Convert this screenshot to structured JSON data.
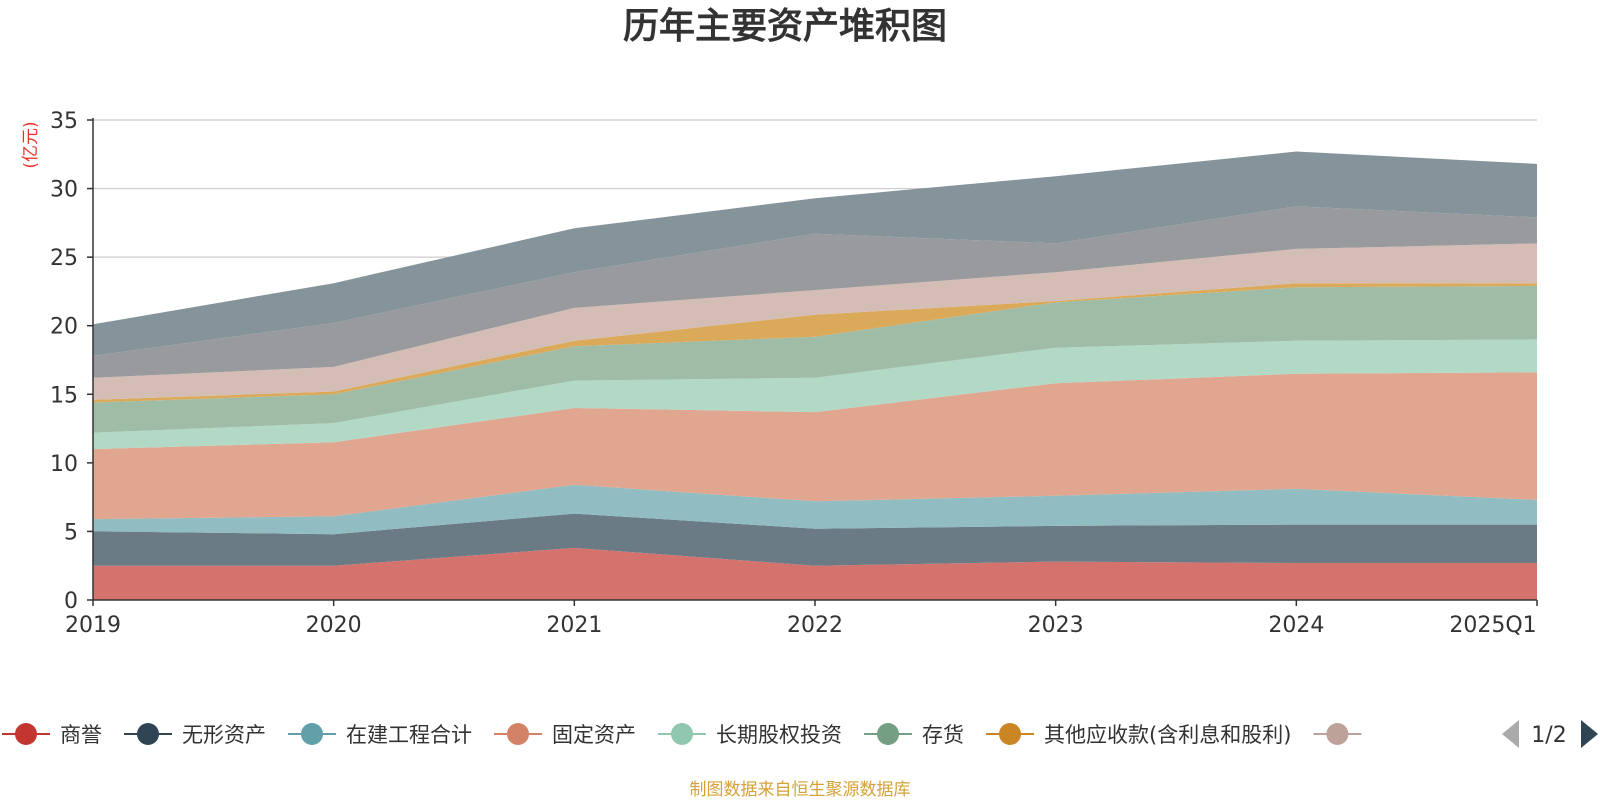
{
  "title": "历年主要资产堆积图",
  "unit_label": "(亿元)",
  "source_note": "制图数据来自恒生聚源数据库",
  "legend_page": "1/2",
  "chart_data": {
    "type": "area",
    "stacked": true,
    "title": "历年主要资产堆积图",
    "ylabel": "(亿元)",
    "categories": [
      "2019",
      "2020",
      "2021",
      "2022",
      "2023",
      "2024",
      "2025Q1"
    ],
    "ylim": [
      0,
      35
    ],
    "yticks": [
      0,
      5,
      10,
      15,
      20,
      25,
      30,
      35
    ],
    "grid": true,
    "legend_position": "bottom",
    "series": [
      {
        "name": "商誉",
        "color": "#d4726e",
        "values": [
          2.5,
          2.5,
          3.8,
          2.5,
          2.8,
          2.7,
          2.7
        ]
      },
      {
        "name": "无形资产",
        "color": "#6a7b86",
        "values": [
          2.5,
          2.3,
          2.5,
          2.7,
          2.6,
          2.8,
          2.8
        ]
      },
      {
        "name": "在建工程合计",
        "color": "#90bcc2",
        "values": [
          0.9,
          1.3,
          2.1,
          2.0,
          2.2,
          2.6,
          1.8
        ]
      },
      {
        "name": "固定资产",
        "color": "#e0a690",
        "values": [
          5.1,
          5.4,
          5.6,
          6.5,
          8.2,
          8.4,
          9.3
        ]
      },
      {
        "name": "长期股权投资",
        "color": "#b1d9c5",
        "values": [
          1.2,
          1.4,
          2.0,
          2.5,
          2.6,
          2.4,
          2.4
        ]
      },
      {
        "name": "存货",
        "color": "#9fbca7",
        "values": [
          2.2,
          2.1,
          2.5,
          3.0,
          3.3,
          3.9,
          3.9
        ]
      },
      {
        "name": "其他应收款(含利息和股利)",
        "color": "#dba95a",
        "values": [
          0.2,
          0.2,
          0.4,
          1.6,
          0.1,
          0.3,
          0.2
        ]
      },
      {
        "name": "",
        "color": "#d4bdb4",
        "values": [
          1.6,
          1.8,
          2.4,
          1.8,
          2.1,
          2.5,
          2.9
        ]
      },
      {
        "name": "",
        "color": "#999a9e",
        "values": [
          1.6,
          3.2,
          2.6,
          4.1,
          2.1,
          3.1,
          1.9
        ]
      },
      {
        "name": "",
        "color": "#85949b",
        "values": [
          2.3,
          2.9,
          3.2,
          2.6,
          4.9,
          4.0,
          3.9
        ]
      }
    ]
  },
  "legend": [
    {
      "name": "商誉",
      "color": "#c23531"
    },
    {
      "name": "无形资产",
      "color": "#2f4554"
    },
    {
      "name": "在建工程合计",
      "color": "#61a0a8"
    },
    {
      "name": "固定资产",
      "color": "#d48265"
    },
    {
      "name": "长期股权投资",
      "color": "#91c7ae"
    },
    {
      "name": "存货",
      "color": "#749f83"
    },
    {
      "name": "其他应收款(含利息和股利)",
      "color": "#ca8622"
    },
    {
      "name": "",
      "color": "#bda29a"
    }
  ]
}
